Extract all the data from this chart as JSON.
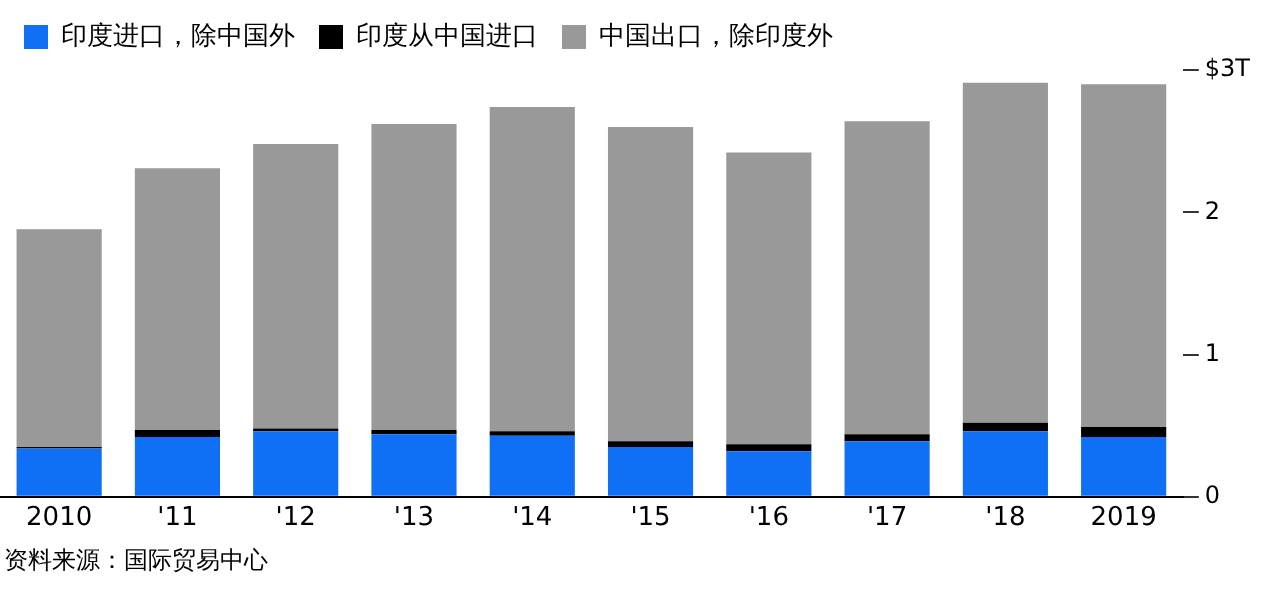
{
  "chart_data": {
    "type": "bar",
    "stacked": true,
    "categories": [
      "2010",
      "'11",
      "'12",
      "'13",
      "'14",
      "'15",
      "'16",
      "'17",
      "'18",
      "2019"
    ],
    "series": [
      {
        "name": "印度进口，除中国外",
        "color": "#0f6ff5",
        "values": [
          0.34,
          0.42,
          0.46,
          0.44,
          0.43,
          0.35,
          0.32,
          0.39,
          0.46,
          0.42
        ]
      },
      {
        "name": "印度从中国进口",
        "color": "#000000",
        "values": [
          0.01,
          0.05,
          0.02,
          0.03,
          0.03,
          0.04,
          0.05,
          0.05,
          0.06,
          0.07
        ]
      },
      {
        "name": "中国出口，除印度外",
        "color": "#999999",
        "values": [
          1.53,
          1.84,
          2.0,
          2.15,
          2.28,
          2.21,
          2.05,
          2.2,
          2.39,
          2.41
        ]
      }
    ],
    "ylim": [
      0,
      3
    ],
    "yticks": [
      0,
      1,
      2,
      {
        "value": 3,
        "label": "$3T"
      }
    ],
    "grid": false,
    "legend": "top left",
    "annotations": [
      "资料来源：国际贸易中心"
    ]
  }
}
